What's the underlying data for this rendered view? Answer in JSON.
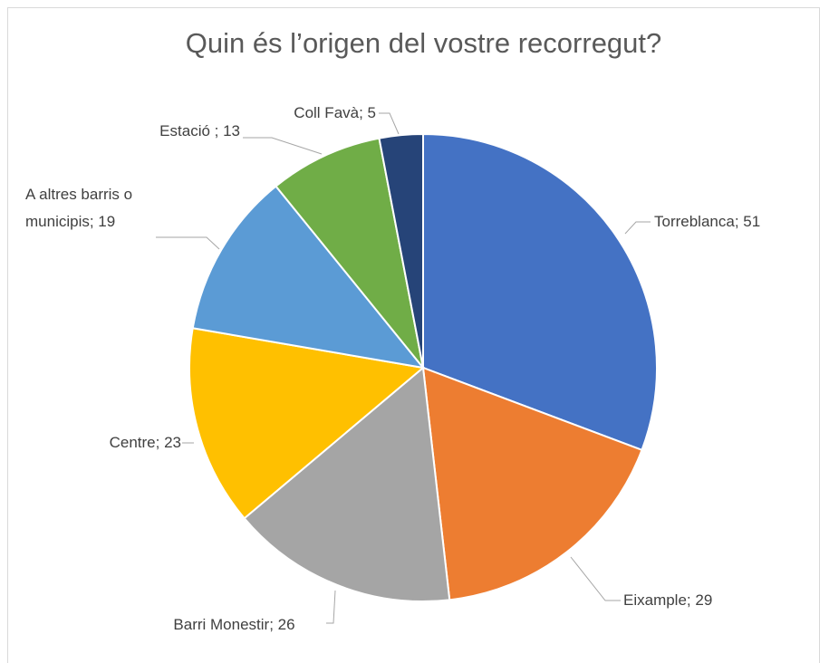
{
  "chart_data": {
    "type": "pie",
    "title": "Quin és l’origen del vostre recorregut?",
    "values": [
      51,
      29,
      26,
      23,
      19,
      13,
      5
    ],
    "value_labels": [
      "Torreblanca; 51",
      "Eixample; 29",
      "Barri Monestir; 26",
      "Centre; 23",
      "A altres barris o municipis; 19",
      "Estació ; 13",
      "Coll Favà; 5"
    ],
    "colors": [
      "#4472c4",
      "#ed7d31",
      "#a5a5a5",
      "#ffc000",
      "#5b9bd5",
      "#70ad47",
      "#264478"
    ]
  }
}
